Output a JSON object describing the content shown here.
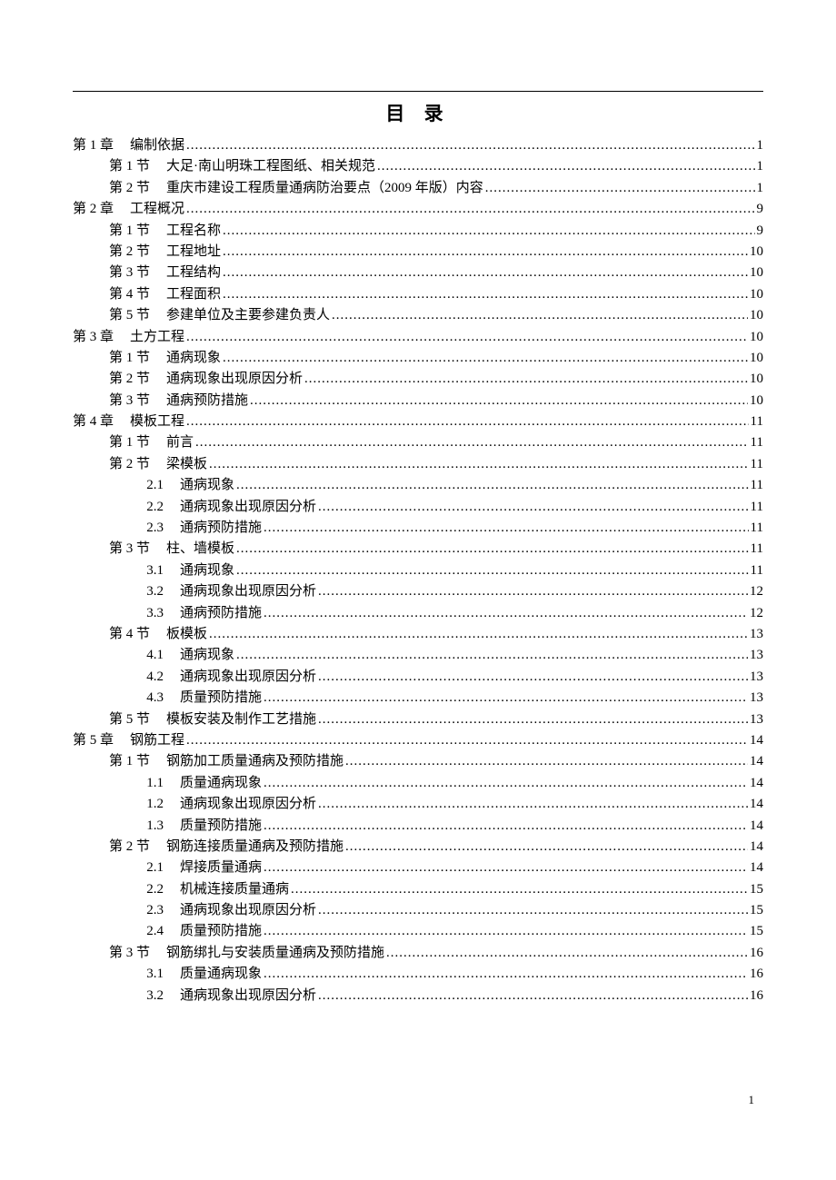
{
  "title": "目 录",
  "page_number": "1",
  "toc": [
    {
      "indent": 0,
      "label": "第 1 章",
      "text": "编制依据",
      "page": "1"
    },
    {
      "indent": 1,
      "label": "第 1 节",
      "text": "大足·南山明珠工程图纸、相关规范 ",
      "page": "1"
    },
    {
      "indent": 1,
      "label": "第 2 节",
      "text": "重庆市建设工程质量通病防治要点（2009 年版）内容",
      "page": "1"
    },
    {
      "indent": 0,
      "label": "第 2 章",
      "text": "工程概况",
      "page": "9"
    },
    {
      "indent": 1,
      "label": "第 1 节",
      "text": "工程名称",
      "page": "9"
    },
    {
      "indent": 1,
      "label": "第 2 节",
      "text": "工程地址",
      "page": "10"
    },
    {
      "indent": 1,
      "label": "第 3 节",
      "text": "工程结构",
      "page": "10"
    },
    {
      "indent": 1,
      "label": "第 4 节",
      "text": "工程面积",
      "page": "10"
    },
    {
      "indent": 1,
      "label": "第 5 节",
      "text": "参建单位及主要参建负责人",
      "page": "10"
    },
    {
      "indent": 0,
      "label": "第 3 章",
      "text": "土方工程",
      "page": "10"
    },
    {
      "indent": 1,
      "label": "第 1 节",
      "text": "通病现象",
      "page": "10"
    },
    {
      "indent": 1,
      "label": "第 2 节",
      "text": "通病现象出现原因分析",
      "page": "10"
    },
    {
      "indent": 1,
      "label": "第 3 节",
      "text": "通病预防措施",
      "page": "10"
    },
    {
      "indent": 0,
      "label": "第 4 章",
      "text": "模板工程",
      "page": "11"
    },
    {
      "indent": 1,
      "label": "第 1 节",
      "text": "前言",
      "page": "11"
    },
    {
      "indent": 1,
      "label": "第 2 节",
      "text": "梁模板",
      "page": "11"
    },
    {
      "indent": 2,
      "label": "2.1",
      "text": "通病现象",
      "page": "11"
    },
    {
      "indent": 2,
      "label": "2.2",
      "text": "通病现象出现原因分析",
      "page": "11"
    },
    {
      "indent": 2,
      "label": "2.3",
      "text": "通病预防措施",
      "page": "11"
    },
    {
      "indent": 1,
      "label": "第 3 节",
      "text": "柱、墙模板",
      "page": "11"
    },
    {
      "indent": 2,
      "label": "3.1",
      "text": "通病现象",
      "page": "11"
    },
    {
      "indent": 2,
      "label": "3.2",
      "text": "通病现象出现原因分析",
      "page": "12"
    },
    {
      "indent": 2,
      "label": "3.3",
      "text": "通病预防措施",
      "page": "12"
    },
    {
      "indent": 1,
      "label": "第 4 节",
      "text": "板模板",
      "page": "13"
    },
    {
      "indent": 2,
      "label": "4.1",
      "text": "通病现象",
      "page": "13"
    },
    {
      "indent": 2,
      "label": "4.2",
      "text": "通病现象出现原因分析",
      "page": "13"
    },
    {
      "indent": 2,
      "label": "4.3",
      "text": "质量预防措施",
      "page": "13"
    },
    {
      "indent": 1,
      "label": "第 5 节",
      "text": "模板安装及制作工艺措施",
      "page": "13"
    },
    {
      "indent": 0,
      "label": "第 5 章",
      "text": "钢筋工程",
      "page": "14"
    },
    {
      "indent": 1,
      "label": "第 1 节",
      "text": "钢筋加工质量通病及预防措施",
      "page": "14"
    },
    {
      "indent": 2,
      "label": "1.1",
      "text": "质量通病现象",
      "page": "14"
    },
    {
      "indent": 2,
      "label": "1.2",
      "text": "通病现象出现原因分析",
      "page": "14"
    },
    {
      "indent": 2,
      "label": "1.3",
      "text": "质量预防措施",
      "page": "14"
    },
    {
      "indent": 1,
      "label": "第 2 节",
      "text": "钢筋连接质量通病及预防措施",
      "page": "14"
    },
    {
      "indent": 2,
      "label": "2.1",
      "text": "焊接质量通病",
      "page": "14"
    },
    {
      "indent": 2,
      "label": "2.2",
      "text": "机械连接质量通病",
      "page": "15"
    },
    {
      "indent": 2,
      "label": "2.3",
      "text": "通病现象出现原因分析",
      "page": "15"
    },
    {
      "indent": 2,
      "label": "2.4",
      "text": "质量预防措施",
      "page": "15"
    },
    {
      "indent": 1,
      "label": "第 3 节",
      "text": "钢筋绑扎与安装质量通病及预防措施",
      "page": "16"
    },
    {
      "indent": 2,
      "label": "3.1",
      "text": "质量通病现象",
      "page": "16"
    },
    {
      "indent": 2,
      "label": "3.2",
      "text": "通病现象出现原因分析",
      "page": "16"
    }
  ]
}
